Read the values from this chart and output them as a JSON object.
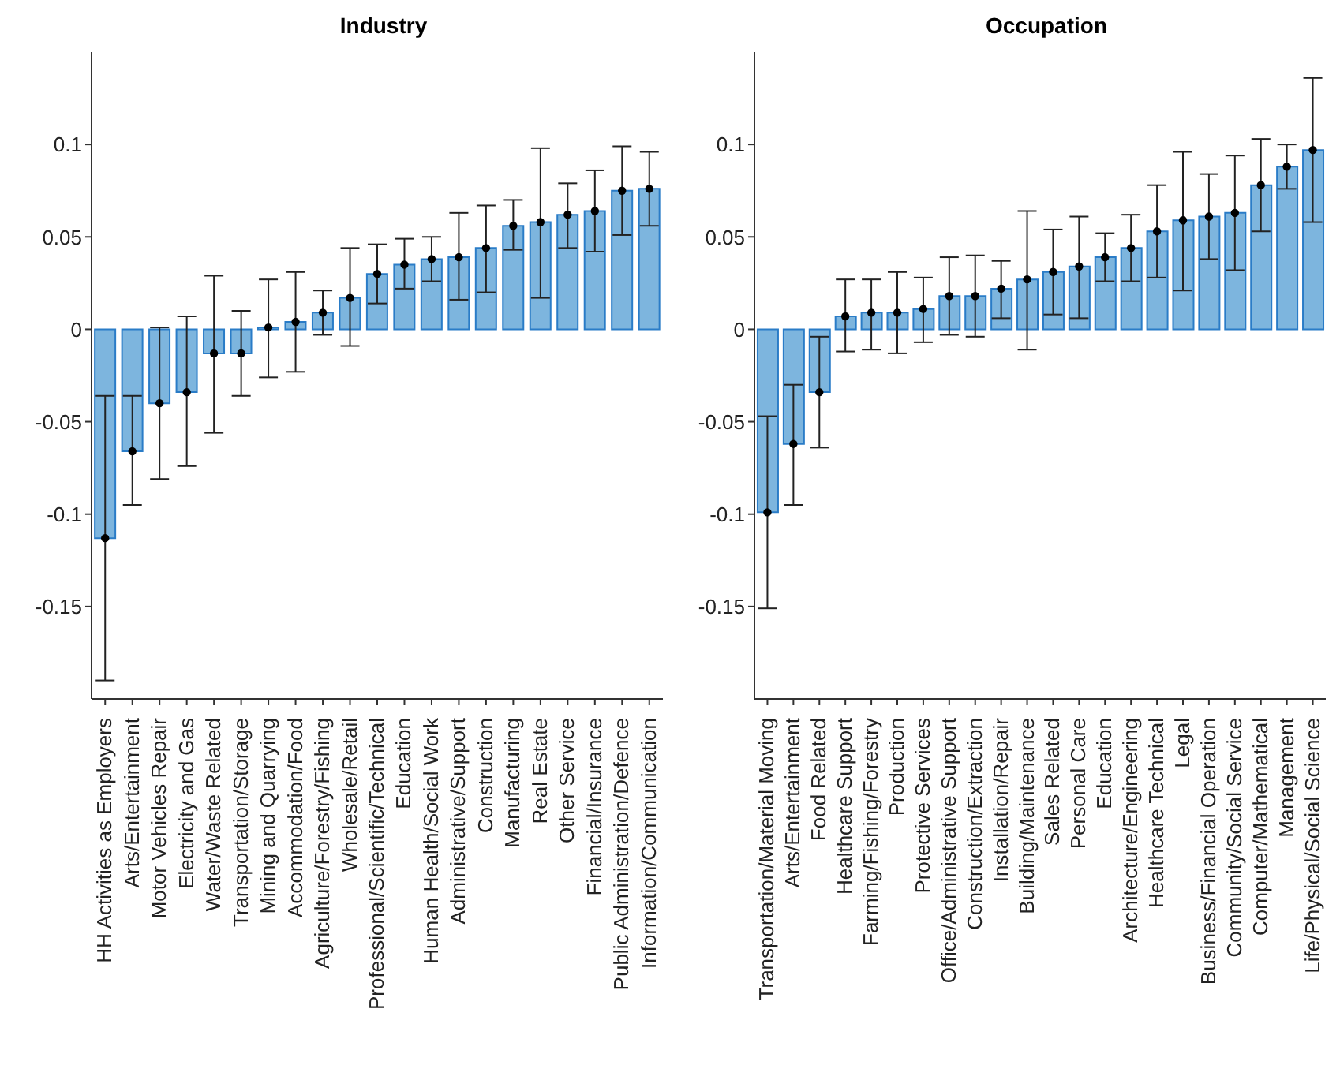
{
  "chart_data": [
    {
      "type": "bar",
      "title": "Industry",
      "grid": false,
      "categories": [
        "HH Activities as Employers",
        "Arts/Entertainment",
        "Motor Vehicles Repair",
        "Electricity and Gas",
        "Water/Waste Related",
        "Transportation/Storage",
        "Mining and Quarrying",
        "Accommodation/Food",
        "Agriculture/Forestry/Fishing",
        "Wholesale/Retail",
        "Professional/Scientific/Technical",
        "Education",
        "Human Health/Social Work",
        "Administrative/Support",
        "Construction",
        "Manufacturing",
        "Real Estate",
        "Other Service",
        "Financial/Insurance",
        "Public Administration/Defence",
        "Information/Communication"
      ],
      "series": [
        {
          "color": "#7db5de",
          "values": [
            -0.113,
            -0.066,
            -0.04,
            -0.034,
            -0.013,
            -0.013,
            0.001,
            0.004,
            0.009,
            0.017,
            0.03,
            0.035,
            0.038,
            0.039,
            0.044,
            0.056,
            0.058,
            0.062,
            0.064,
            0.075,
            0.076
          ]
        },
        {
          "type": "scatter",
          "color": "#000000",
          "marker": "circle",
          "x": [
            "HH Activities as Employers",
            "Arts/Entertainment",
            "Motor Vehicles Repair",
            "Electricity and Gas",
            "Water/Waste Related",
            "Transportation/Storage",
            "Mining and Quarrying",
            "Accommodation/Food",
            "Agriculture/Forestry/Fishing",
            "Wholesale/Retail",
            "Professional/Scientific/Technical",
            "Education",
            "Human Health/Social Work",
            "Administrative/Support",
            "Construction",
            "Manufacturing",
            "Real Estate",
            "Other Service",
            "Financial/Insurance",
            "Public Administration/Defence",
            "Information/Communication"
          ],
          "values": [
            -0.113,
            -0.066,
            -0.04,
            -0.034,
            -0.013,
            -0.013,
            0.001,
            0.004,
            0.009,
            0.017,
            0.03,
            0.035,
            0.038,
            0.039,
            0.044,
            0.056,
            0.058,
            0.062,
            0.064,
            0.075,
            0.076
          ],
          "errors": [
            [
              -0.19,
              -0.036
            ],
            [
              -0.095,
              -0.036
            ],
            [
              -0.081,
              0.001
            ],
            [
              -0.074,
              0.007
            ],
            [
              -0.056,
              0.029
            ],
            [
              -0.036,
              0.01
            ],
            [
              -0.026,
              0.027
            ],
            [
              -0.023,
              0.031
            ],
            [
              -0.003,
              0.021
            ],
            [
              -0.009,
              0.044
            ],
            [
              0.014,
              0.046
            ],
            [
              0.022,
              0.049
            ],
            [
              0.026,
              0.05
            ],
            [
              0.016,
              0.063
            ],
            [
              0.02,
              0.067
            ],
            [
              0.043,
              0.07
            ],
            [
              0.017,
              0.098
            ],
            [
              0.044,
              0.079
            ],
            [
              0.042,
              0.086
            ],
            [
              0.051,
              0.099
            ],
            [
              0.056,
              0.096
            ]
          ]
        }
      ],
      "ylim": [
        -0.2,
        0.15
      ],
      "yticks": [
        -0.15,
        -0.1,
        -0.05,
        0,
        0.05,
        0.1
      ]
    },
    {
      "type": "bar",
      "title": "Occupation",
      "grid": false,
      "categories": [
        "Transportation/Material Moving",
        "Arts/Entertainment",
        "Food Related",
        "Healthcare Support",
        "Farming/Fishing/Forestry",
        "Production",
        "Protective Services",
        "Office/Administrative Support",
        "Construction/Extraction",
        "Installation/Repair",
        "Building/Maintenance",
        "Sales Related",
        "Personal Care",
        "Education",
        "Architecture/Engineering",
        "Healthcare Technical",
        "Legal",
        "Business/Financial Operation",
        "Community/Social Service",
        "Computer/Mathematical",
        "Management",
        "Life/Physical/Social Science"
      ],
      "series": [
        {
          "color": "#7db5de",
          "values": [
            -0.099,
            -0.062,
            -0.034,
            0.007,
            0.009,
            0.009,
            0.011,
            0.018,
            0.018,
            0.022,
            0.027,
            0.031,
            0.034,
            0.039,
            0.044,
            0.053,
            0.059,
            0.061,
            0.063,
            0.078,
            0.088,
            0.097
          ]
        },
        {
          "type": "scatter",
          "color": "#000000",
          "marker": "circle",
          "x": [
            "Transportation/Material Moving",
            "Arts/Entertainment",
            "Food Related",
            "Healthcare Support",
            "Farming/Fishing/Forestry",
            "Production",
            "Protective Services",
            "Office/Administrative Support",
            "Construction/Extraction",
            "Installation/Repair",
            "Building/Maintenance",
            "Sales Related",
            "Personal Care",
            "Education",
            "Architecture/Engineering",
            "Healthcare Technical",
            "Legal",
            "Business/Financial Operation",
            "Community/Social Service",
            "Computer/Mathematical",
            "Management",
            "Life/Physical/Social Science"
          ],
          "values": [
            -0.099,
            -0.062,
            -0.034,
            0.007,
            0.009,
            0.009,
            0.011,
            0.018,
            0.018,
            0.022,
            0.027,
            0.031,
            0.034,
            0.039,
            0.044,
            0.053,
            0.059,
            0.061,
            0.063,
            0.078,
            0.088,
            0.097
          ],
          "errors": [
            [
              -0.151,
              -0.047
            ],
            [
              -0.095,
              -0.03
            ],
            [
              -0.064,
              -0.004
            ],
            [
              -0.012,
              0.027
            ],
            [
              -0.011,
              0.027
            ],
            [
              -0.013,
              0.031
            ],
            [
              -0.007,
              0.028
            ],
            [
              -0.003,
              0.039
            ],
            [
              -0.004,
              0.04
            ],
            [
              0.006,
              0.037
            ],
            [
              -0.011,
              0.064
            ],
            [
              0.008,
              0.054
            ],
            [
              0.006,
              0.061
            ],
            [
              0.026,
              0.052
            ],
            [
              0.026,
              0.062
            ],
            [
              0.028,
              0.078
            ],
            [
              0.021,
              0.096
            ],
            [
              0.038,
              0.084
            ],
            [
              0.032,
              0.094
            ],
            [
              0.053,
              0.103
            ],
            [
              0.076,
              0.1
            ],
            [
              0.058,
              0.136
            ]
          ]
        }
      ],
      "ylim": [
        -0.2,
        0.15
      ],
      "yticks": [
        -0.15,
        -0.1,
        -0.05,
        0,
        0.05,
        0.1
      ]
    }
  ]
}
